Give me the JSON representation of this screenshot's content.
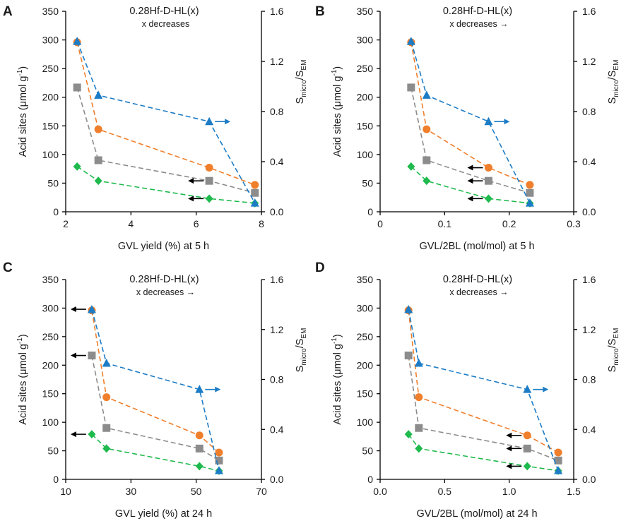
{
  "chart_data": [
    {
      "type": "scatter",
      "panel": "A",
      "title": "0.28Hf-D-HL(x)",
      "subtitle": "x decreases",
      "xlabel": "GVL yield (%) at 5 h",
      "ylabel": "Acid sites (μmol g⁻¹)",
      "y2label": "Smicro/SEM",
      "xlim": [
        2,
        8
      ],
      "xticks": [
        2,
        4,
        6,
        8
      ],
      "xtick_labels": [
        "2",
        "4",
        "6",
        "8"
      ],
      "ylim": [
        0,
        350
      ],
      "yticks": [
        0,
        50,
        100,
        150,
        200,
        250,
        300,
        350
      ],
      "y2lim": [
        0,
        1.6
      ],
      "y2ticks": [
        "0.0",
        "0.4",
        "0.8",
        "1.2",
        "1.6"
      ],
      "series": [
        {
          "name": "orange",
          "color": "#f07f2c",
          "marker": "circle",
          "axis": "left",
          "x": [
            2.35,
            3.0,
            6.4,
            7.8
          ],
          "y": [
            296,
            144,
            77,
            47
          ]
        },
        {
          "name": "gray",
          "color": "#8c8c8c",
          "marker": "square",
          "axis": "left",
          "x": [
            2.35,
            3.0,
            6.4,
            7.8
          ],
          "y": [
            217,
            90,
            54,
            33
          ]
        },
        {
          "name": "green",
          "color": "#1fba4e",
          "marker": "diamond",
          "axis": "left",
          "x": [
            2.35,
            3.0,
            6.4,
            7.8
          ],
          "y": [
            79,
            54,
            23,
            15
          ]
        },
        {
          "name": "blue",
          "color": "#1c7cc5",
          "marker": "triangle",
          "axis": "right",
          "x": [
            2.35,
            3.0,
            6.4,
            7.8
          ],
          "y": [
            1.36,
            0.93,
            0.72,
            0.07
          ]
        }
      ],
      "arrows": [
        {
          "color": "#000000",
          "dir": "left",
          "x": 6.4,
          "y": 54,
          "axis": "left"
        },
        {
          "color": "#000000",
          "dir": "left",
          "x": 6.4,
          "y": 23,
          "axis": "left"
        },
        {
          "color": "#1c7cc5",
          "dir": "right",
          "x": 6.4,
          "y": 0.72,
          "axis": "right"
        }
      ]
    },
    {
      "type": "scatter",
      "panel": "B",
      "title": "0.28Hf-D-HL(x)",
      "subtitle": "x decreases →",
      "xlabel": "GVL/2BL (mol/mol) at 5 h",
      "ylabel": "Acid sites (μmol g⁻¹)",
      "y2label": "Smicro/SEM",
      "xlim": [
        0,
        0.3
      ],
      "xticks": [
        0,
        0.1,
        0.2,
        0.3
      ],
      "xtick_labels": [
        "0",
        "0.1",
        "0.2",
        "0.3"
      ],
      "ylim": [
        0,
        350
      ],
      "yticks": [
        0,
        50,
        100,
        150,
        200,
        250,
        300,
        350
      ],
      "y2lim": [
        0,
        1.6
      ],
      "y2ticks": [
        "0.0",
        "0.4",
        "0.8",
        "1.2",
        "1.6"
      ],
      "series": [
        {
          "name": "orange",
          "color": "#f07f2c",
          "marker": "circle",
          "axis": "left",
          "x": [
            0.048,
            0.072,
            0.168,
            0.232
          ],
          "y": [
            296,
            144,
            77,
            47
          ]
        },
        {
          "name": "gray",
          "color": "#8c8c8c",
          "marker": "square",
          "axis": "left",
          "x": [
            0.048,
            0.072,
            0.168,
            0.232
          ],
          "y": [
            217,
            90,
            54,
            33
          ]
        },
        {
          "name": "green",
          "color": "#1fba4e",
          "marker": "diamond",
          "axis": "left",
          "x": [
            0.048,
            0.072,
            0.168,
            0.232
          ],
          "y": [
            79,
            54,
            23,
            15
          ]
        },
        {
          "name": "blue",
          "color": "#1c7cc5",
          "marker": "triangle",
          "axis": "right",
          "x": [
            0.048,
            0.072,
            0.168,
            0.232
          ],
          "y": [
            1.36,
            0.93,
            0.72,
            0.07
          ]
        }
      ],
      "arrows": [
        {
          "color": "#000000",
          "dir": "left",
          "x": 0.168,
          "y": 77,
          "axis": "left"
        },
        {
          "color": "#000000",
          "dir": "left",
          "x": 0.168,
          "y": 54,
          "axis": "left"
        },
        {
          "color": "#000000",
          "dir": "left",
          "x": 0.168,
          "y": 23,
          "axis": "left"
        },
        {
          "color": "#1c7cc5",
          "dir": "right",
          "x": 0.168,
          "y": 0.72,
          "axis": "right"
        }
      ]
    },
    {
      "type": "scatter",
      "panel": "C",
      "title": "0.28Hf-D-HL(x)",
      "subtitle": "x decreases →",
      "xlabel": "GVL yield (%) at 24 h",
      "ylabel": "Acid sites (μmol g⁻¹)",
      "y2label": "Smicro/SEM",
      "xlim": [
        10,
        70
      ],
      "xticks": [
        10,
        30,
        50,
        70
      ],
      "xtick_labels": [
        "10",
        "30",
        "50",
        "70"
      ],
      "ylim": [
        0,
        350
      ],
      "yticks": [
        0,
        50,
        100,
        150,
        200,
        250,
        300,
        350
      ],
      "y2lim": [
        0,
        1.6
      ],
      "y2ticks": [
        "0.0",
        "0.4",
        "0.8",
        "1.2",
        "1.6"
      ],
      "series": [
        {
          "name": "orange",
          "color": "#f07f2c",
          "marker": "circle",
          "axis": "left",
          "x": [
            18,
            22.5,
            51,
            57
          ],
          "y": [
            296,
            144,
            77,
            47
          ]
        },
        {
          "name": "gray",
          "color": "#8c8c8c",
          "marker": "square",
          "axis": "left",
          "x": [
            18,
            22.5,
            51,
            57
          ],
          "y": [
            217,
            90,
            54,
            33
          ]
        },
        {
          "name": "green",
          "color": "#1fba4e",
          "marker": "diamond",
          "axis": "left",
          "x": [
            18,
            22.5,
            51,
            57
          ],
          "y": [
            79,
            54,
            23,
            15
          ]
        },
        {
          "name": "blue",
          "color": "#1c7cc5",
          "marker": "triangle",
          "axis": "right",
          "x": [
            18,
            22.5,
            51,
            57
          ],
          "y": [
            1.36,
            0.93,
            0.72,
            0.07
          ]
        }
      ],
      "arrows": [
        {
          "color": "#000000",
          "dir": "left",
          "x": 18,
          "y": 298,
          "axis": "left"
        },
        {
          "color": "#000000",
          "dir": "left",
          "x": 18,
          "y": 217,
          "axis": "left"
        },
        {
          "color": "#000000",
          "dir": "left",
          "x": 18,
          "y": 79,
          "axis": "left"
        },
        {
          "color": "#1c7cc5",
          "dir": "right",
          "x": 51,
          "y": 0.72,
          "axis": "right"
        }
      ]
    },
    {
      "type": "scatter",
      "panel": "D",
      "title": "0.28Hf-D-HL(x)",
      "subtitle": "x decreases →",
      "xlabel": "GVL/2BL (mol/mol) at 24 h",
      "ylabel": "Acid sites (μmol g⁻¹)",
      "y2label": "Smicro/SEM",
      "xlim": [
        0,
        1.5
      ],
      "xticks": [
        0,
        0.5,
        1.0,
        1.5
      ],
      "xtick_labels": [
        "0.0",
        "0.5",
        "1.0",
        "1.5"
      ],
      "ylim": [
        0,
        350
      ],
      "yticks": [
        0,
        50,
        100,
        150,
        200,
        250,
        300,
        350
      ],
      "y2lim": [
        0,
        1.6
      ],
      "y2ticks": [
        "0.0",
        "0.4",
        "0.8",
        "1.2",
        "1.6"
      ],
      "series": [
        {
          "name": "orange",
          "color": "#f07f2c",
          "marker": "circle",
          "axis": "left",
          "x": [
            0.22,
            0.3,
            1.14,
            1.38
          ],
          "y": [
            296,
            144,
            77,
            47
          ]
        },
        {
          "name": "gray",
          "color": "#8c8c8c",
          "marker": "square",
          "axis": "left",
          "x": [
            0.22,
            0.3,
            1.14,
            1.38
          ],
          "y": [
            217,
            90,
            54,
            33
          ]
        },
        {
          "name": "green",
          "color": "#1fba4e",
          "marker": "diamond",
          "axis": "left",
          "x": [
            0.22,
            0.3,
            1.14,
            1.38
          ],
          "y": [
            79,
            54,
            23,
            15
          ]
        },
        {
          "name": "blue",
          "color": "#1c7cc5",
          "marker": "triangle",
          "axis": "right",
          "x": [
            0.22,
            0.3,
            1.14,
            1.38
          ],
          "y": [
            1.36,
            0.93,
            0.72,
            0.07
          ]
        }
      ],
      "arrows": [
        {
          "color": "#000000",
          "dir": "left",
          "x": 1.14,
          "y": 77,
          "axis": "left"
        },
        {
          "color": "#000000",
          "dir": "left",
          "x": 1.14,
          "y": 54,
          "axis": "left"
        },
        {
          "color": "#000000",
          "dir": "left",
          "x": 1.14,
          "y": 23,
          "axis": "left"
        },
        {
          "color": "#1c7cc5",
          "dir": "right",
          "x": 1.14,
          "y": 0.72,
          "axis": "right"
        }
      ]
    }
  ]
}
